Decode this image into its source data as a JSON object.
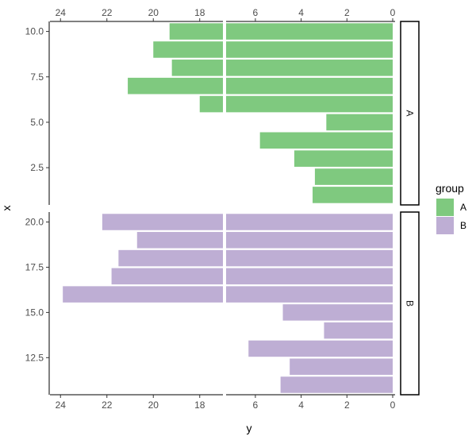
{
  "chart_data": {
    "type": "bar",
    "orientation": "horizontal",
    "xlabel": "x",
    "ylabel": "y",
    "y_scale": "reversed, broken between 7 and 17",
    "y_ticks_right": [
      "6",
      "4",
      "2",
      "0"
    ],
    "y_ticks_left": [
      "24",
      "22",
      "20",
      "18"
    ],
    "legend": {
      "title": "group",
      "entries": [
        "A",
        "B"
      ],
      "colors": [
        "#7fc97f",
        "#beaed4"
      ],
      "placement": "right"
    },
    "facets": [
      {
        "strip": "A",
        "x_ticks": [
          "10.0",
          "7.5",
          "5.0",
          "2.5"
        ],
        "tick_values": [
          10,
          7.5,
          5,
          2.5
        ],
        "xlim": [
          0.45,
          10.55
        ],
        "x": [
          1,
          2,
          3,
          4,
          5,
          6,
          7,
          8,
          9,
          10
        ],
        "y": [
          3.5,
          3.4,
          4.3,
          5.8,
          2.9,
          18.0,
          21.1,
          19.2,
          20.0,
          19.3
        ]
      },
      {
        "strip": "B",
        "x_ticks": [
          "20.0",
          "17.5",
          "15.0",
          "12.5"
        ],
        "tick_values": [
          20,
          17.5,
          15,
          12.5
        ],
        "xlim": [
          10.45,
          20.55
        ],
        "x": [
          11,
          12,
          13,
          14,
          15,
          16,
          17,
          18,
          19,
          20
        ],
        "y": [
          4.9,
          4.5,
          6.3,
          3.0,
          4.8,
          23.9,
          21.8,
          21.5,
          20.7,
          22.2
        ]
      }
    ],
    "colors": {
      "A": "#7fc97f",
      "B": "#beaed4"
    }
  }
}
